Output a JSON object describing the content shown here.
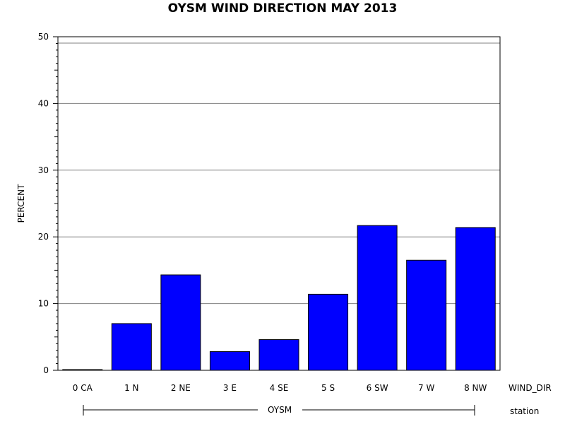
{
  "chart_data": {
    "type": "bar",
    "title": "OYSM WIND DIRECTION MAY 2013",
    "ylabel": "PERCENT",
    "xlabel": "WIND_DIR",
    "group_axis_label": "station",
    "group_name": "OYSM",
    "categories": [
      "0 CA",
      "1 N",
      "2 NE",
      "3 E",
      "4 SE",
      "5 S",
      "6 SW",
      "7 W",
      "8 NW"
    ],
    "values": [
      0.1,
      7.0,
      14.3,
      2.8,
      4.6,
      11.4,
      21.7,
      16.5,
      21.4
    ],
    "ylim": [
      0,
      50
    ],
    "yticks": [
      0,
      10,
      20,
      30,
      40,
      50
    ],
    "grid": true,
    "bar_color": "#0000ff"
  }
}
